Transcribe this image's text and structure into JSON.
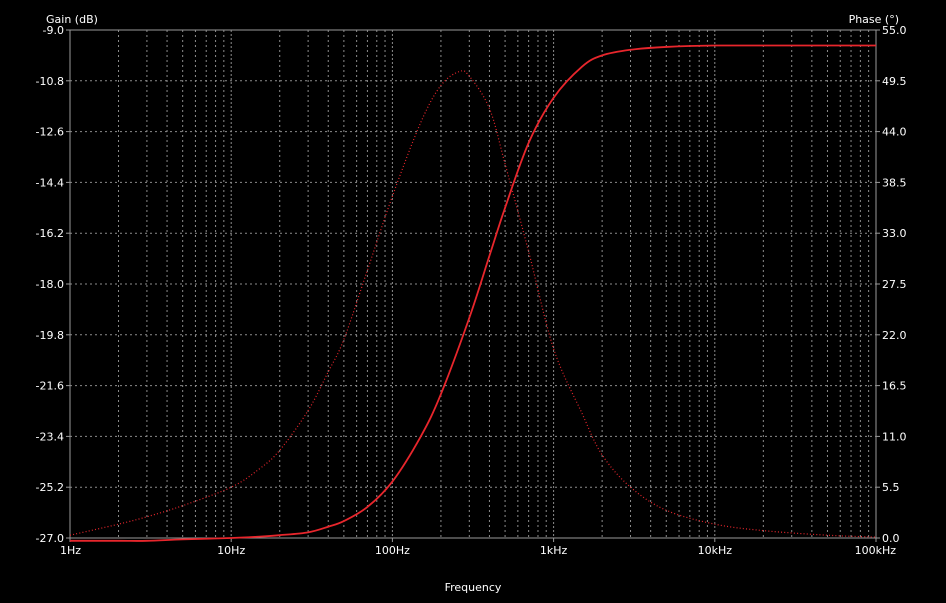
{
  "chart_data": {
    "type": "line",
    "title": "",
    "xlabel": "Frequency",
    "y_left_label": "Gain (dB)",
    "y_right_label": "Phase (°)",
    "x_scale": "log",
    "xlim": [
      1,
      100000
    ],
    "x_ticks": [
      {
        "value": 1,
        "label": "1Hz"
      },
      {
        "value": 10,
        "label": "10Hz"
      },
      {
        "value": 100,
        "label": "100Hz"
      },
      {
        "value": 1000,
        "label": "1kHz"
      },
      {
        "value": 10000,
        "label": "10kHz"
      },
      {
        "value": 100000,
        "label": "100kHz"
      }
    ],
    "y_left_lim": [
      -27.0,
      -9.0
    ],
    "y_left_ticks": [
      "-9.0",
      "-10.8",
      "-12.6",
      "-14.4",
      "-16.2",
      "-18.0",
      "-19.8",
      "-21.6",
      "-23.4",
      "-25.2",
      "-27.0"
    ],
    "y_right_lim": [
      0.0,
      55.0
    ],
    "y_right_ticks": [
      "55.0",
      "49.5",
      "44.0",
      "38.5",
      "33.0",
      "27.5",
      "22.0",
      "16.5",
      "11.0",
      "5.5",
      "0.0"
    ],
    "grid": true,
    "series": [
      {
        "role": "gain",
        "axis": "left",
        "color": "#e8262c",
        "style": "solid",
        "x": [
          1,
          2,
          3,
          5,
          10,
          15,
          20,
          30,
          40,
          50,
          70,
          100,
          150,
          200,
          300,
          400,
          500,
          700,
          1000,
          1500,
          2000,
          3000,
          5000,
          10000,
          30000,
          100000
        ],
        "y": [
          -27.1,
          -27.1,
          -27.1,
          -27.05,
          -27.0,
          -26.95,
          -26.9,
          -26.8,
          -26.6,
          -26.4,
          -25.9,
          -25.0,
          -23.4,
          -21.9,
          -19.2,
          -17.0,
          -15.3,
          -13.0,
          -11.4,
          -10.3,
          -9.9,
          -9.7,
          -9.6,
          -9.55,
          -9.55,
          -9.55
        ]
      },
      {
        "role": "phase",
        "axis": "right",
        "color": "#e8262c",
        "style": "dotted",
        "x": [
          1,
          2,
          3,
          5,
          10,
          15,
          20,
          30,
          40,
          50,
          70,
          100,
          150,
          200,
          260,
          300,
          400,
          500,
          700,
          1000,
          1500,
          2000,
          3000,
          5000,
          10000,
          20000,
          50000,
          100000
        ],
        "y": [
          0.3,
          1.5,
          2.3,
          3.5,
          5.5,
          7.5,
          9.5,
          13.8,
          18.0,
          21.5,
          29.0,
          37.0,
          45.0,
          49.0,
          50.5,
          50.0,
          46.5,
          40.5,
          31.0,
          20.5,
          13.5,
          9.0,
          5.5,
          3.0,
          1.5,
          0.8,
          0.3,
          0.1
        ]
      }
    ]
  }
}
